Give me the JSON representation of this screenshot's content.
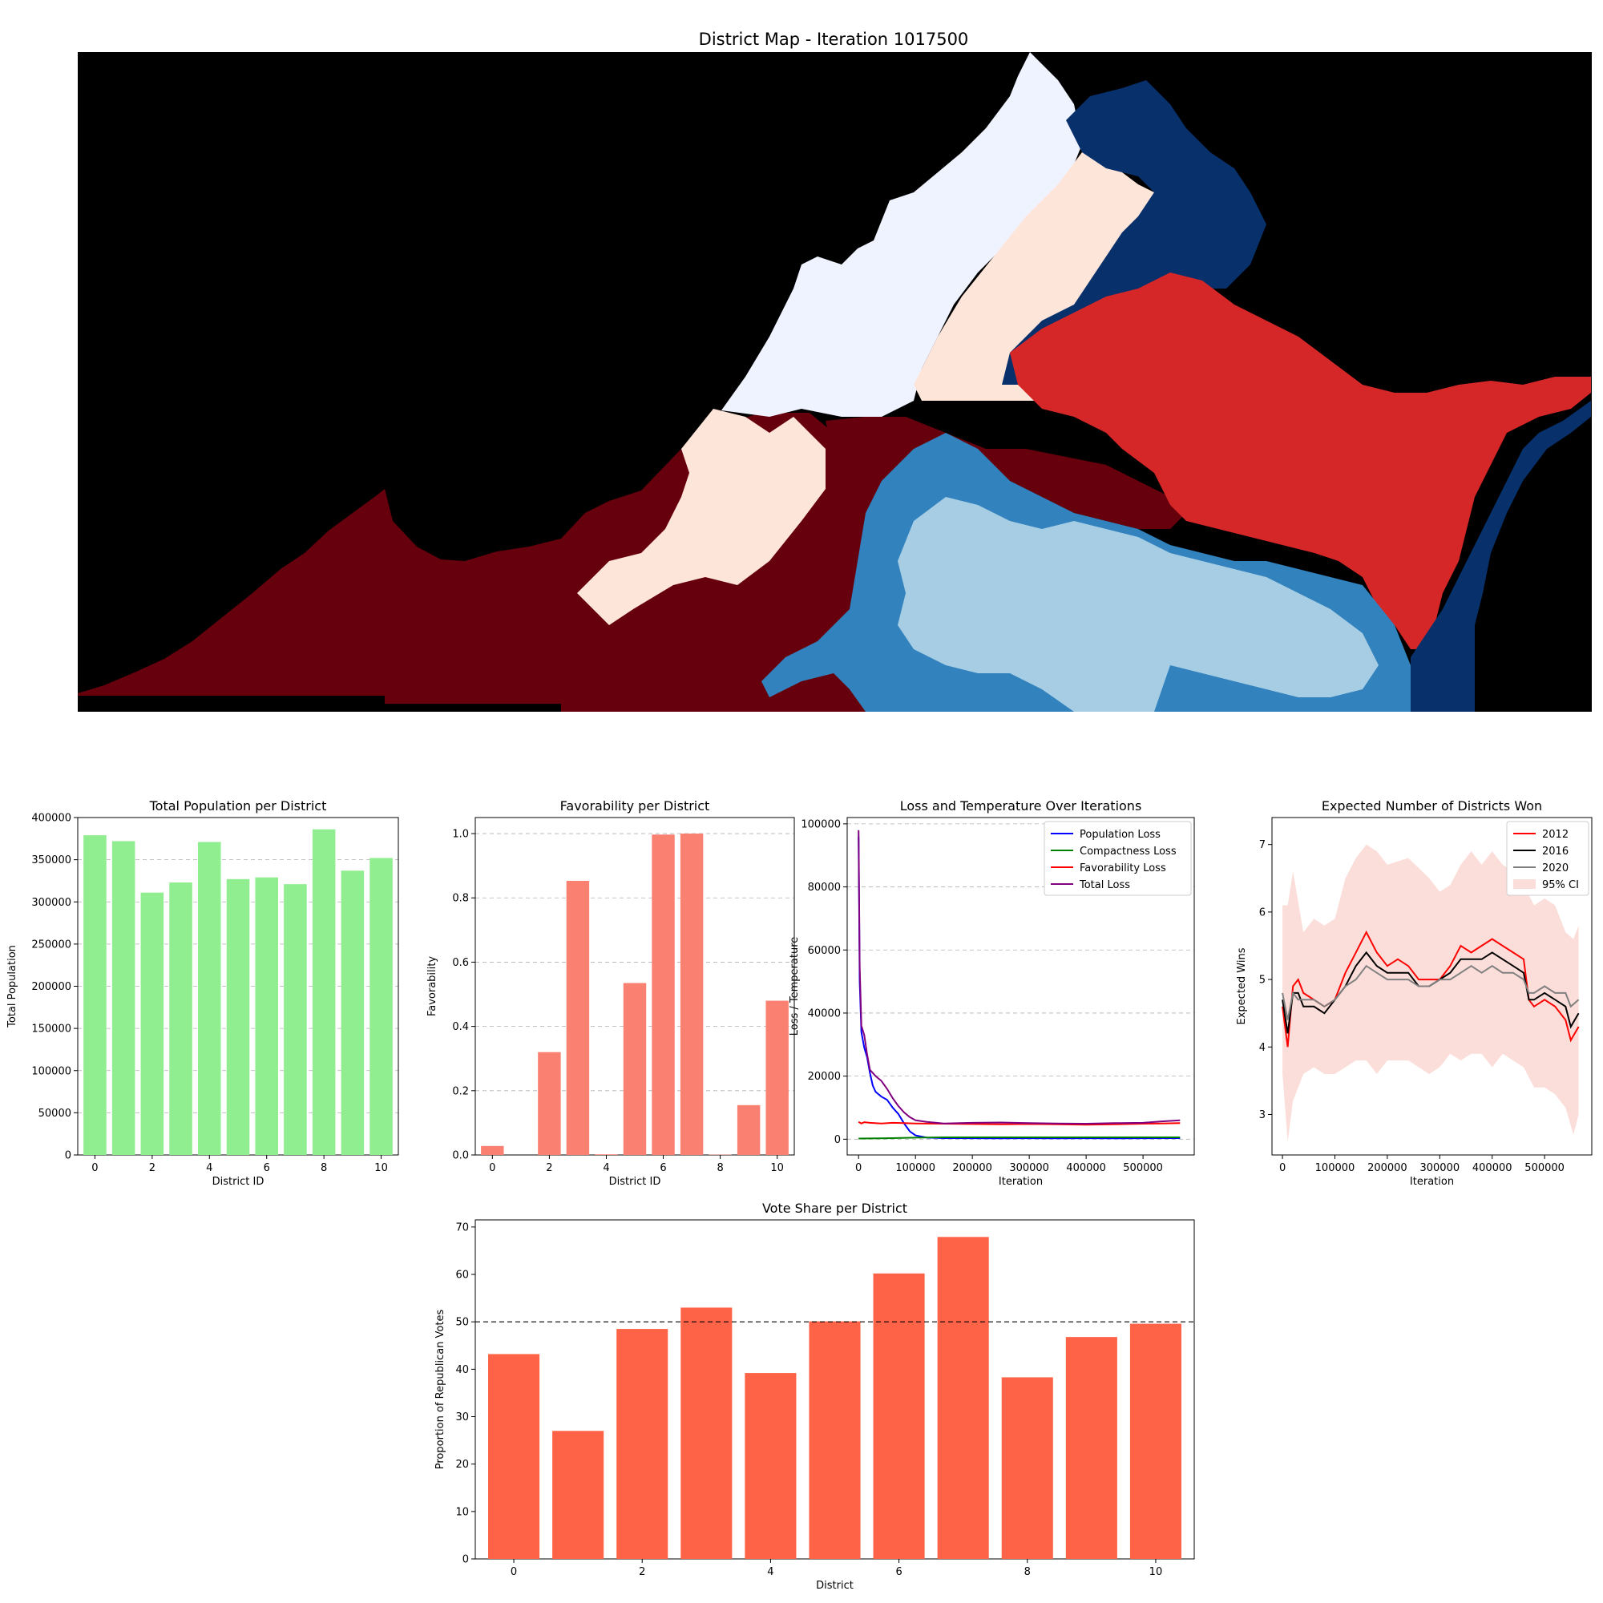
{
  "colors": {
    "black": "#000000",
    "dark_red": "#67000d",
    "red": "#d62728",
    "light_pink": "#fee5d9",
    "pale_blue": "#eff3ff",
    "navy": "#08306b",
    "steel_blue": "#3182bd",
    "light_blue": "#a6cde3",
    "population_bar": "#90ee90",
    "favorability_bar": "#fa8072",
    "vote_bar": "#ff6347"
  },
  "chart_data": [
    {
      "id": "district_map",
      "type": "heatmap",
      "title": "District Map - Iteration 1017500",
      "note_regions": [
        "dark_red",
        "red",
        "light_pink",
        "pale_blue",
        "navy",
        "steel_blue",
        "light_blue"
      ]
    },
    {
      "id": "population",
      "type": "bar",
      "title": "Total Population per District",
      "xlabel": "District ID",
      "ylabel": "Total Population",
      "categories": [
        0,
        1,
        2,
        3,
        4,
        5,
        6,
        7,
        8,
        9,
        10
      ],
      "values": [
        379000,
        372000,
        311000,
        323000,
        371000,
        327000,
        329000,
        321000,
        386000,
        337000,
        352000
      ],
      "ylim": [
        0,
        400000
      ],
      "yticks": [
        0,
        50000,
        100000,
        150000,
        200000,
        250000,
        300000,
        350000,
        400000
      ],
      "xticks": [
        0,
        2,
        4,
        6,
        8,
        10
      ],
      "grid": "y"
    },
    {
      "id": "favorability",
      "type": "bar",
      "title": "Favorability per District",
      "xlabel": "District ID",
      "ylabel": "Favorability",
      "categories": [
        0,
        1,
        2,
        3,
        4,
        5,
        6,
        7,
        8,
        9,
        10
      ],
      "values": [
        0.028,
        0.0,
        0.32,
        0.853,
        0.002,
        0.535,
        0.997,
        1.0,
        0.001,
        0.155,
        0.48
      ],
      "ylim": [
        0,
        1.05
      ],
      "yticks": [
        0.0,
        0.2,
        0.4,
        0.6,
        0.8,
        1.0
      ],
      "xticks": [
        0,
        2,
        4,
        6,
        8,
        10
      ],
      "grid": "y"
    },
    {
      "id": "loss",
      "type": "line",
      "title": "Loss and Temperature Over Iterations",
      "xlabel": "Iteration",
      "ylabel": "Loss / Temperature",
      "xlim": [
        -20000,
        590000
      ],
      "ylim": [
        -5000,
        102000
      ],
      "xticks": [
        0,
        100000,
        200000,
        300000,
        400000,
        500000
      ],
      "yticks": [
        0,
        20000,
        40000,
        60000,
        80000,
        100000
      ],
      "legend": "top-right",
      "grid": "y",
      "series": [
        {
          "name": "Population Loss",
          "color": "#0000ff",
          "x": [
            0,
            2000,
            5000,
            10000,
            15000,
            20000,
            25000,
            30000,
            40000,
            50000,
            60000,
            70000,
            80000,
            90000,
            100000,
            120000,
            150000,
            200000,
            250000,
            300000,
            350000,
            400000,
            450000,
            500000,
            565000
          ],
          "y": [
            96000,
            50000,
            34000,
            29000,
            26000,
            21000,
            17000,
            15000,
            13500,
            12500,
            10000,
            8000,
            5000,
            2500,
            1200,
            500,
            350,
            300,
            250,
            300,
            250,
            300,
            250,
            300,
            350
          ]
        },
        {
          "name": "Compactness Loss",
          "color": "#008000",
          "x": [
            0,
            50000,
            100000,
            150000,
            200000,
            250000,
            300000,
            350000,
            400000,
            450000,
            500000,
            565000
          ],
          "y": [
            200,
            300,
            500,
            600,
            600,
            600,
            600,
            600,
            600,
            600,
            600,
            600
          ]
        },
        {
          "name": "Favorability Loss",
          "color": "#ff0000",
          "x": [
            0,
            5000,
            10000,
            20000,
            40000,
            60000,
            80000,
            100000,
            150000,
            200000,
            250000,
            300000,
            350000,
            400000,
            450000,
            500000,
            530000,
            565000
          ],
          "y": [
            5500,
            5000,
            5400,
            5200,
            5000,
            5200,
            5100,
            5000,
            4900,
            4800,
            4700,
            4800,
            4700,
            4600,
            4700,
            4900,
            5000,
            5100
          ]
        },
        {
          "name": "Total Loss",
          "color": "#800080",
          "x": [
            0,
            2000,
            5000,
            10000,
            15000,
            20000,
            30000,
            40000,
            50000,
            60000,
            70000,
            80000,
            90000,
            100000,
            120000,
            150000,
            200000,
            250000,
            300000,
            350000,
            400000,
            450000,
            500000,
            530000,
            565000
          ],
          "y": [
            98000,
            55000,
            36000,
            33000,
            27000,
            22000,
            20000,
            18500,
            16000,
            13000,
            10500,
            8500,
            7000,
            6000,
            5500,
            5000,
            5200,
            5300,
            5100,
            5000,
            4900,
            5100,
            5200,
            5600,
            6000
          ]
        }
      ]
    },
    {
      "id": "wins",
      "type": "line",
      "title": "Expected Number of Districts Won",
      "xlabel": "Iteration",
      "ylabel": "Expected Wins",
      "xlim": [
        -20000,
        590000
      ],
      "ylim": [
        2.4,
        7.4
      ],
      "xticks": [
        0,
        100000,
        200000,
        300000,
        400000,
        500000
      ],
      "yticks": [
        3,
        4,
        5,
        6,
        7
      ],
      "legend": "top-right",
      "series": [
        {
          "name": "2012",
          "color": "#ff0000",
          "x": [
            0,
            10000,
            20000,
            30000,
            40000,
            60000,
            80000,
            100000,
            120000,
            140000,
            160000,
            180000,
            200000,
            220000,
            240000,
            260000,
            280000,
            300000,
            320000,
            340000,
            360000,
            380000,
            400000,
            420000,
            440000,
            460000,
            470000,
            480000,
            500000,
            520000,
            540000,
            550000,
            565000
          ],
          "y": [
            4.6,
            4.0,
            4.9,
            5.0,
            4.8,
            4.7,
            4.6,
            4.7,
            5.1,
            5.4,
            5.7,
            5.4,
            5.2,
            5.3,
            5.2,
            5.0,
            5.0,
            5.0,
            5.2,
            5.5,
            5.4,
            5.5,
            5.6,
            5.5,
            5.4,
            5.3,
            4.7,
            4.6,
            4.7,
            4.6,
            4.4,
            4.1,
            4.3
          ]
        },
        {
          "name": "2016",
          "color": "#000000",
          "x": [
            0,
            10000,
            20000,
            30000,
            40000,
            60000,
            80000,
            100000,
            120000,
            140000,
            160000,
            180000,
            200000,
            220000,
            240000,
            260000,
            280000,
            300000,
            320000,
            340000,
            360000,
            380000,
            400000,
            420000,
            440000,
            460000,
            470000,
            480000,
            500000,
            520000,
            540000,
            550000,
            565000
          ],
          "y": [
            4.7,
            4.2,
            4.8,
            4.8,
            4.6,
            4.6,
            4.5,
            4.7,
            4.9,
            5.2,
            5.4,
            5.2,
            5.1,
            5.1,
            5.1,
            4.9,
            4.9,
            5.0,
            5.1,
            5.3,
            5.3,
            5.3,
            5.4,
            5.3,
            5.2,
            5.1,
            4.7,
            4.7,
            4.8,
            4.7,
            4.6,
            4.3,
            4.5
          ]
        },
        {
          "name": "2020",
          "color": "#808080",
          "x": [
            0,
            10000,
            20000,
            30000,
            40000,
            60000,
            80000,
            100000,
            120000,
            140000,
            160000,
            180000,
            200000,
            220000,
            240000,
            260000,
            280000,
            300000,
            320000,
            340000,
            360000,
            380000,
            400000,
            420000,
            440000,
            460000,
            470000,
            480000,
            500000,
            520000,
            540000,
            550000,
            565000
          ],
          "y": [
            4.8,
            4.4,
            4.8,
            4.7,
            4.7,
            4.7,
            4.6,
            4.7,
            4.9,
            5.0,
            5.2,
            5.1,
            5.0,
            5.0,
            5.0,
            4.9,
            4.9,
            5.0,
            5.0,
            5.1,
            5.2,
            5.1,
            5.2,
            5.1,
            5.1,
            5.0,
            4.8,
            4.8,
            4.9,
            4.8,
            4.8,
            4.6,
            4.7
          ]
        },
        {
          "name": "95% CI",
          "color": "#f8c8c0",
          "type": "band",
          "x": [
            0,
            10000,
            20000,
            40000,
            60000,
            80000,
            100000,
            120000,
            140000,
            160000,
            180000,
            200000,
            240000,
            280000,
            300000,
            320000,
            340000,
            360000,
            380000,
            400000,
            420000,
            440000,
            460000,
            480000,
            500000,
            520000,
            540000,
            555000,
            565000
          ],
          "lower": [
            3.6,
            2.6,
            3.2,
            3.6,
            3.7,
            3.6,
            3.6,
            3.7,
            3.8,
            3.8,
            3.6,
            3.8,
            3.8,
            3.6,
            3.7,
            3.9,
            3.8,
            3.9,
            3.9,
            3.7,
            3.9,
            3.8,
            3.7,
            3.4,
            3.4,
            3.3,
            3.1,
            2.7,
            3.0
          ],
          "upper": [
            6.1,
            6.1,
            6.6,
            5.7,
            5.9,
            5.8,
            5.9,
            6.5,
            6.8,
            7.0,
            6.9,
            6.7,
            6.8,
            6.5,
            6.3,
            6.4,
            6.7,
            6.9,
            6.7,
            6.9,
            6.7,
            6.6,
            6.4,
            6.1,
            6.2,
            6.1,
            5.7,
            5.6,
            5.8
          ]
        }
      ]
    },
    {
      "id": "vote_share",
      "type": "bar",
      "title": "Vote Share per District",
      "xlabel": "District",
      "ylabel": "Proportion of Republican Votes",
      "categories": [
        0,
        1,
        2,
        3,
        4,
        5,
        6,
        7,
        8,
        9,
        10
      ],
      "values": [
        43.2,
        27.0,
        48.5,
        53.0,
        39.2,
        50.1,
        60.2,
        67.9,
        38.3,
        46.8,
        49.6
      ],
      "ylim": [
        0,
        71.5
      ],
      "yticks": [
        0,
        10,
        20,
        30,
        40,
        50,
        60,
        70
      ],
      "xticks": [
        0,
        2,
        4,
        6,
        8,
        10
      ],
      "reference_line": 50
    }
  ]
}
